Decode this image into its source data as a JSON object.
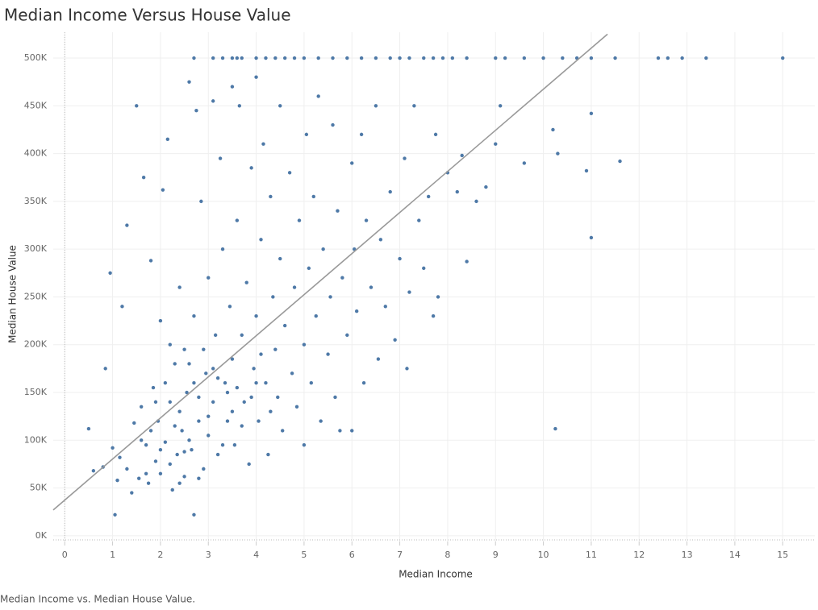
{
  "chart_data": {
    "type": "scatter",
    "title": "Median Income Versus House Value",
    "x_label": "Median Income",
    "y_label": "Median House Value",
    "caption": "Median Income vs. Median House Value.",
    "xlim": [
      -0.24,
      15.67
    ],
    "ylim": [
      -6000,
      527000
    ],
    "xticks": [
      0,
      1,
      2,
      3,
      4,
      5,
      6,
      7,
      8,
      9,
      10,
      11,
      12,
      13,
      14,
      15
    ],
    "yticks": [
      {
        "value": 0,
        "label": "0K"
      },
      {
        "value": 50000,
        "label": "50K"
      },
      {
        "value": 100000,
        "label": "100K"
      },
      {
        "value": 150000,
        "label": "150K"
      },
      {
        "value": 200000,
        "label": "200K"
      },
      {
        "value": 250000,
        "label": "250K"
      },
      {
        "value": 300000,
        "label": "300K"
      },
      {
        "value": 350000,
        "label": "350K"
      },
      {
        "value": 400000,
        "label": "400K"
      },
      {
        "value": 450000,
        "label": "450K"
      },
      {
        "value": 500000,
        "label": "500K"
      }
    ],
    "grid": true,
    "color": "#4e79a7",
    "trend_line": {
      "color": "#999999",
      "x": [
        -0.24,
        11.34
      ],
      "y": [
        27000,
        525000
      ]
    },
    "x": [
      2.7,
      3.1,
      3.3,
      3.5,
      3.6,
      3.7,
      4.0,
      4.2,
      4.4,
      4.6,
      4.8,
      5.0,
      5.3,
      5.6,
      5.9,
      6.2,
      6.5,
      6.8,
      7.0,
      7.2,
      7.5,
      7.7,
      7.9,
      8.1,
      8.4,
      9.0,
      9.2,
      9.6,
      10.0,
      10.4,
      10.7,
      11.0,
      11.5,
      12.4,
      12.6,
      12.9,
      13.4,
      15.0,
      0.5,
      0.6,
      0.8,
      0.85,
      0.95,
      1.0,
      1.05,
      1.1,
      1.15,
      1.2,
      1.3,
      1.3,
      1.4,
      1.45,
      1.5,
      1.55,
      1.6,
      1.65,
      1.7,
      1.75,
      1.8,
      1.85,
      1.9,
      1.95,
      2.0,
      2.0,
      2.05,
      2.1,
      2.15,
      2.2,
      2.25,
      2.3,
      2.35,
      2.4,
      2.45,
      2.5,
      2.5,
      2.55,
      2.6,
      2.65,
      2.7,
      2.7,
      2.75,
      2.8,
      2.85,
      2.9,
      2.95,
      3.0,
      3.0,
      3.1,
      3.1,
      3.15,
      3.2,
      3.25,
      3.3,
      3.35,
      3.4,
      3.45,
      3.5,
      3.5,
      3.55,
      3.6,
      3.65,
      3.7,
      3.75,
      3.8,
      3.85,
      3.9,
      3.95,
      4.0,
      4.0,
      4.05,
      4.1,
      4.15,
      4.2,
      4.25,
      4.3,
      4.35,
      4.4,
      4.45,
      4.5,
      4.5,
      4.55,
      4.6,
      4.7,
      4.75,
      4.8,
      4.85,
      4.9,
      5.0,
      5.0,
      5.05,
      5.1,
      5.15,
      5.2,
      5.25,
      5.3,
      5.35,
      5.4,
      5.5,
      5.55,
      5.6,
      5.65,
      5.7,
      5.75,
      5.8,
      5.9,
      6.0,
      6.0,
      6.05,
      6.1,
      6.2,
      6.25,
      6.3,
      6.4,
      6.5,
      6.55,
      6.6,
      6.7,
      6.8,
      6.9,
      7.0,
      7.1,
      7.15,
      7.2,
      7.3,
      7.4,
      7.5,
      7.6,
      7.7,
      7.75,
      7.8,
      8.0,
      8.2,
      8.3,
      8.4,
      8.6,
      8.8,
      9.0,
      9.1,
      9.6,
      10.2,
      10.25,
      10.3,
      10.9,
      11.0,
      11.0,
      11.6,
      1.6,
      1.8,
      2.0,
      2.2,
      2.4,
      2.6,
      2.8,
      3.0,
      3.2,
      3.4,
      1.9,
      2.1,
      2.3,
      2.5,
      2.7,
      2.9,
      3.1,
      3.3,
      3.5,
      3.7,
      3.9,
      4.1,
      4.3,
      2.2,
      2.6,
      1.7,
      2.4,
      2.8,
      3.6,
      4.0
    ],
    "y": [
      500000,
      500000,
      500000,
      500000,
      500000,
      500000,
      500000,
      500000,
      500000,
      500000,
      500000,
      500000,
      500000,
      500000,
      500000,
      500000,
      500000,
      500000,
      500000,
      500000,
      500000,
      500000,
      500000,
      500000,
      500000,
      500000,
      500000,
      500000,
      500000,
      500000,
      500000,
      500000,
      500000,
      500000,
      500000,
      500000,
      500000,
      500000,
      112000,
      68000,
      72000,
      175000,
      275000,
      92000,
      22000,
      58000,
      82000,
      240000,
      325000,
      70000,
      45000,
      118000,
      450000,
      60000,
      135000,
      375000,
      95000,
      55000,
      288000,
      155000,
      78000,
      120000,
      65000,
      225000,
      362000,
      98000,
      415000,
      140000,
      48000,
      180000,
      85000,
      260000,
      110000,
      62000,
      195000,
      150000,
      475000,
      90000,
      22000,
      230000,
      445000,
      120000,
      350000,
      70000,
      170000,
      270000,
      105000,
      455000,
      140000,
      210000,
      85000,
      395000,
      300000,
      160000,
      120000,
      240000,
      470000,
      185000,
      95000,
      330000,
      450000,
      210000,
      140000,
      265000,
      75000,
      385000,
      175000,
      480000,
      230000,
      120000,
      310000,
      410000,
      160000,
      85000,
      355000,
      250000,
      195000,
      145000,
      450000,
      290000,
      110000,
      220000,
      380000,
      170000,
      260000,
      135000,
      330000,
      200000,
      95000,
      420000,
      280000,
      160000,
      355000,
      230000,
      460000,
      120000,
      300000,
      190000,
      250000,
      430000,
      145000,
      340000,
      110000,
      270000,
      210000,
      390000,
      110000,
      300000,
      235000,
      420000,
      160000,
      330000,
      260000,
      450000,
      185000,
      310000,
      240000,
      360000,
      205000,
      290000,
      395000,
      175000,
      255000,
      450000,
      330000,
      280000,
      355000,
      230000,
      420000,
      250000,
      380000,
      360000,
      398000,
      287000,
      350000,
      365000,
      410000,
      450000,
      390000,
      425000,
      112000,
      400000,
      382000,
      312000,
      442000,
      392000,
      100000,
      110000,
      90000,
      75000,
      130000,
      100000,
      145000,
      125000,
      165000,
      150000,
      140000,
      160000,
      115000,
      88000,
      160000,
      195000,
      175000,
      95000,
      130000,
      115000,
      145000,
      190000,
      130000,
      200000,
      180000,
      65000,
      55000,
      60000,
      155000,
      160000
    ]
  }
}
